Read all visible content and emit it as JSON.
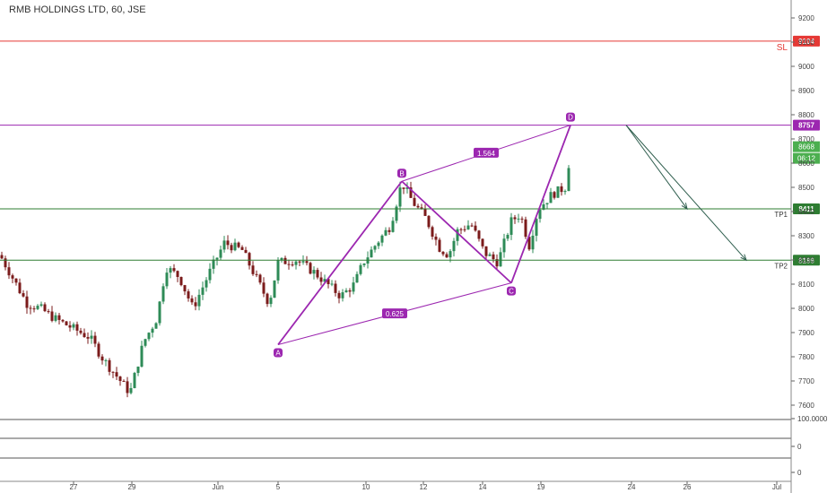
{
  "header": {
    "title": "RMB HOLDINGS LTD, 60, JSE"
  },
  "chart_data": {
    "type": "candlestick",
    "title": "RMB HOLDINGS LTD, 60, JSE",
    "price_axis": {
      "ticks": [
        "9200",
        "9100",
        "9000",
        "8900",
        "8800",
        "8700",
        "8600",
        "8500",
        "8400",
        "8300",
        "8200",
        "8100",
        "8000",
        "7900",
        "7800",
        "7700",
        "7600"
      ],
      "range": [
        7570,
        9260
      ]
    },
    "time_axis": {
      "labels": [
        "27",
        "29",
        "Jun",
        "5",
        "10",
        "12",
        "14",
        "19",
        "24",
        "26",
        "Jul"
      ]
    },
    "levels": [
      {
        "name": "SL",
        "value": 9104,
        "label": "9104",
        "color": "#e53935"
      },
      {
        "name": "D",
        "value": 8757,
        "label": "8757",
        "color": "#9c27b0"
      },
      {
        "name": "TP1",
        "value": 8411,
        "label": "8411",
        "color": "#2e7d32"
      },
      {
        "name": "TP2",
        "value": 8199,
        "label": "8199",
        "color": "#2e7d32"
      }
    ],
    "level_texts": {
      "sl": "SL",
      "tp1": "TP1",
      "tp2": "TP2"
    },
    "current_price": {
      "value": "8668",
      "countdown": "06:12",
      "color": "#4caf50"
    },
    "pattern": {
      "points": [
        {
          "label": "A",
          "price": 7850
        },
        {
          "label": "B",
          "price": 8525
        },
        {
          "label": "C",
          "price": 8105
        },
        {
          "label": "D",
          "price": 8757
        }
      ],
      "ratios": {
        "xb": "1.564",
        "ac": "0.625"
      },
      "color": "#9c27b0"
    },
    "indicator_pane": {
      "labels": [
        "100.0000",
        "0",
        "0"
      ]
    },
    "colors": {
      "up": "#26a69a",
      "down": "#8b1a1a",
      "candle_up": "#2e8b57",
      "candle_down": "#7b1b1b",
      "arrow": "#2f5e4e"
    }
  }
}
